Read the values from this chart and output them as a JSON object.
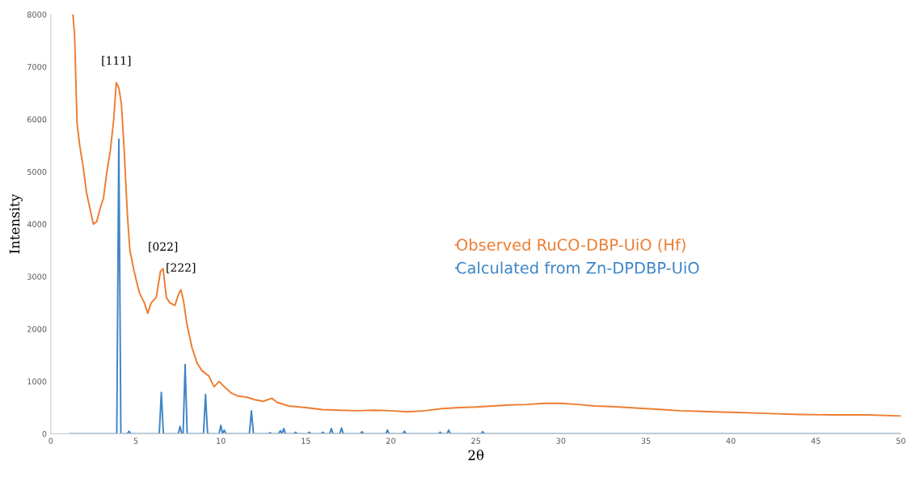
{
  "chart_data": {
    "type": "line",
    "xlabel": "2θ",
    "ylabel": "Intensity",
    "xlim": [
      0,
      50
    ],
    "ylim": [
      0,
      8000
    ],
    "xticks": [
      0,
      5,
      10,
      15,
      20,
      25,
      30,
      35,
      40,
      45,
      50
    ],
    "yticks": [
      0,
      1000,
      2000,
      3000,
      4000,
      5000,
      6000,
      7000,
      8000
    ],
    "grid": false,
    "legend": "right",
    "marker": "none",
    "line_style": "solid",
    "annotations": [
      {
        "text": "[111]",
        "x": 3.85,
        "y": 6700
      },
      {
        "text": "[022]",
        "x": 6.6,
        "y": 3150
      },
      {
        "text": "[222]",
        "x": 7.65,
        "y": 2750
      }
    ],
    "series": [
      {
        "name": "Observed RuCO-DBP-UiO (Hf)",
        "color": "#ed7d31",
        "x": [
          1.3,
          1.4,
          1.5,
          1.55,
          1.7,
          1.9,
          2.1,
          2.3,
          2.5,
          2.7,
          2.9,
          3.1,
          3.3,
          3.5,
          3.7,
          3.85,
          4.0,
          4.15,
          4.3,
          4.5,
          4.65,
          4.9,
          5.2,
          5.5,
          5.7,
          5.9,
          6.2,
          6.45,
          6.6,
          6.8,
          7.0,
          7.3,
          7.5,
          7.65,
          7.8,
          8.0,
          8.3,
          8.6,
          8.9,
          9.3,
          9.6,
          9.9,
          10.2,
          10.6,
          11,
          11.5,
          12,
          12.5,
          13,
          13.3,
          14,
          15,
          16,
          17,
          18,
          19,
          20,
          21,
          22,
          23,
          24,
          25,
          26,
          27,
          28,
          29,
          30,
          31,
          32,
          33,
          34,
          35,
          36,
          37,
          38,
          39,
          40,
          42,
          44,
          46,
          48,
          50
        ],
        "values": [
          8000,
          7600,
          6400,
          5900,
          5500,
          5100,
          4600,
          4300,
          4000,
          4050,
          4300,
          4500,
          5000,
          5400,
          6000,
          6700,
          6600,
          6300,
          5500,
          4200,
          3500,
          3100,
          2700,
          2500,
          2300,
          2500,
          2600,
          3100,
          3150,
          2600,
          2500,
          2450,
          2650,
          2750,
          2550,
          2100,
          1650,
          1350,
          1200,
          1100,
          900,
          1000,
          900,
          780,
          720,
          700,
          650,
          620,
          680,
          600,
          530,
          500,
          460,
          450,
          440,
          450,
          440,
          420,
          440,
          480,
          500,
          510,
          530,
          550,
          560,
          580,
          580,
          560,
          530,
          520,
          500,
          480,
          460,
          440,
          430,
          420,
          410,
          390,
          370,
          360,
          360,
          340
        ]
      },
      {
        "name": "Calculated from Zn-DPDBP-UiO",
        "color": "#3d85c6",
        "x": [
          1.1,
          3.88,
          4.0,
          4.12,
          4.5,
          4.6,
          4.7,
          6.38,
          6.5,
          6.62,
          7.5,
          7.6,
          7.7,
          7.78,
          7.9,
          8.02,
          8.98,
          9.1,
          9.22,
          9.9,
          10.0,
          10.1,
          10.2,
          10.3,
          11.68,
          11.8,
          11.92,
          12.8,
          12.9,
          13.0,
          13.4,
          13.5,
          13.6,
          13.7,
          13.8,
          14.3,
          14.4,
          14.5,
          15.1,
          15.2,
          15.3,
          15.9,
          16.0,
          16.1,
          16.4,
          16.5,
          16.6,
          17.0,
          17.1,
          17.2,
          18.2,
          18.3,
          18.4,
          19.7,
          19.8,
          19.9,
          20.7,
          20.8,
          20.9,
          22.8,
          22.9,
          23.0,
          23.3,
          23.4,
          23.5,
          25.3,
          25.4,
          25.5,
          50
        ],
        "values": [
          0,
          0,
          5620,
          0,
          0,
          50,
          0,
          0,
          790,
          0,
          0,
          140,
          0,
          0,
          1320,
          0,
          0,
          750,
          0,
          0,
          160,
          0,
          70,
          0,
          0,
          440,
          0,
          0,
          20,
          0,
          0,
          60,
          0,
          100,
          0,
          0,
          30,
          0,
          0,
          30,
          0,
          0,
          30,
          0,
          0,
          100,
          0,
          0,
          110,
          0,
          0,
          40,
          0,
          0,
          70,
          0,
          0,
          50,
          0,
          0,
          30,
          0,
          0,
          70,
          0,
          0,
          40,
          0,
          0
        ]
      }
    ]
  }
}
